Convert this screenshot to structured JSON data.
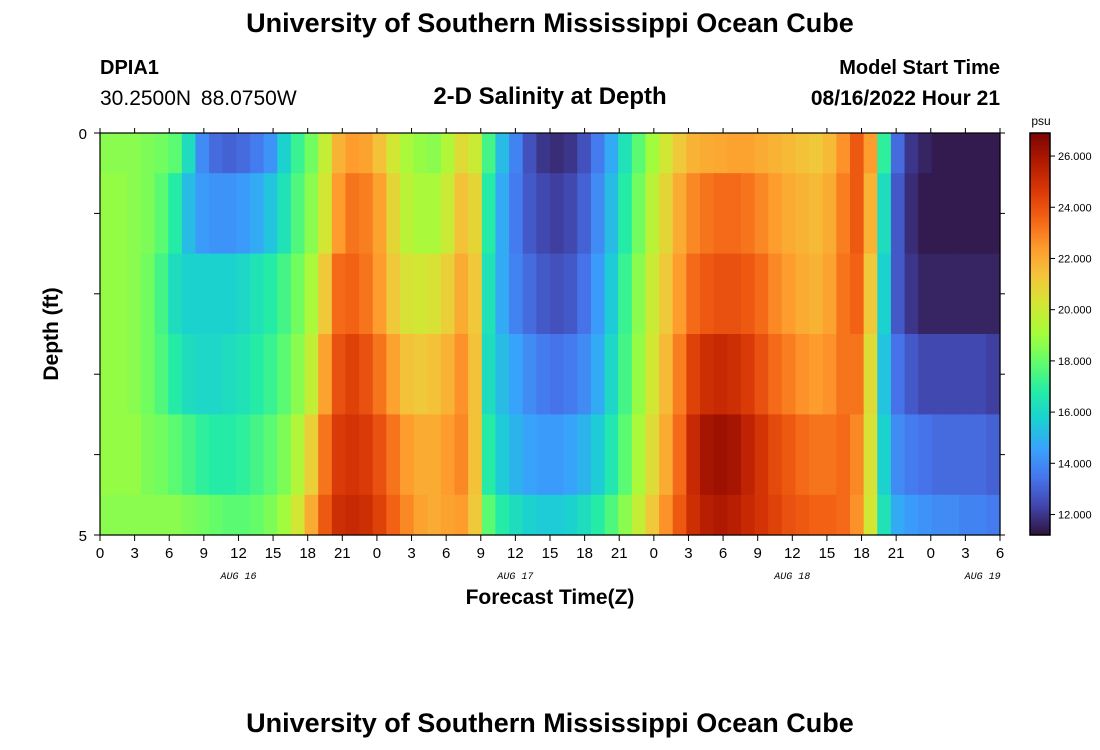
{
  "header": {
    "title": "University of Southern Mississippi Ocean Cube",
    "station": "DPIA1",
    "coords": "30.2500N  88.0750W",
    "subtitle": "2-D Salinity at Depth",
    "model_start_label": "Model Start Time",
    "model_start_value": "08/16/2022 Hour 21",
    "footer_title": "University of Southern Mississippi Ocean Cube"
  },
  "chart_data": {
    "type": "heatmap",
    "title": "2-D Salinity at Depth",
    "xlabel": "Forecast Time(Z)",
    "ylabel": "Depth (ft)",
    "x_tick_labels": [
      "0",
      "3",
      "6",
      "9",
      "12",
      "15",
      "18",
      "21",
      "0",
      "3",
      "6",
      "9",
      "12",
      "15",
      "18",
      "21",
      "0",
      "3",
      "6",
      "9",
      "12",
      "15",
      "18",
      "21",
      "0",
      "3",
      "6"
    ],
    "date_labels": [
      "AUG 16",
      "AUG 17",
      "AUG 18",
      "AUG 19"
    ],
    "y_tick_labels": [
      "0",
      "5"
    ],
    "ylim": [
      0,
      5
    ],
    "colorbar": {
      "unit": "psu",
      "min": 11.2,
      "max": 26.9,
      "tick_values": [
        12,
        14,
        16,
        18,
        20,
        22,
        24,
        26
      ],
      "tick_labels": [
        "12.000",
        "14.000",
        "16.000",
        "18.000",
        "20.000",
        "22.000",
        "24.000",
        "26.000"
      ],
      "colors": [
        "#30123b",
        "#4145ab",
        "#4675ed",
        "#39a2fc",
        "#1bcfd4",
        "#24eca6",
        "#61fc6c",
        "#a4fc3b",
        "#d1e834",
        "#f3c63a",
        "#fe9b2d",
        "#f36315",
        "#d93806",
        "#b11901",
        "#7a0402"
      ]
    },
    "depth_rows": [
      {
        "depth": 0.0,
        "values": [
          18.6,
          18.6,
          18.6,
          18.4,
          18.2,
          17.8,
          16.2,
          14.0,
          13.2,
          13.0,
          13.2,
          13.6,
          14.2,
          15.8,
          17.2,
          18.2,
          19.8,
          21.8,
          22.4,
          22.2,
          21.4,
          20.2,
          19.2,
          18.8,
          18.6,
          19.4,
          20.6,
          20.0,
          17.4,
          15.2,
          13.8,
          12.6,
          12.0,
          11.8,
          12.0,
          12.6,
          13.6,
          14.8,
          16.4,
          17.8,
          19.0,
          20.2,
          21.2,
          21.8,
          22.0,
          22.1,
          22.2,
          22.2,
          22.0,
          21.8,
          21.6,
          21.4,
          21.2,
          21.6,
          22.6,
          23.8,
          22.4,
          17.0,
          13.2,
          12.0,
          11.6,
          11.4,
          11.4,
          11.4,
          11.4,
          11.4
        ]
      },
      {
        "depth": 1.0,
        "values": [
          18.8,
          18.8,
          18.6,
          18.4,
          17.8,
          16.8,
          15.2,
          14.4,
          14.2,
          14.2,
          14.4,
          14.8,
          15.4,
          16.4,
          17.6,
          18.6,
          20.2,
          22.4,
          23.2,
          23.0,
          22.2,
          20.8,
          19.6,
          19.2,
          19.2,
          20.0,
          21.4,
          20.8,
          16.8,
          14.8,
          13.6,
          12.8,
          12.4,
          12.2,
          12.4,
          13.0,
          14.0,
          15.2,
          16.8,
          18.2,
          19.6,
          20.8,
          22.0,
          22.8,
          23.2,
          23.4,
          23.4,
          23.2,
          22.8,
          22.4,
          22.0,
          21.8,
          21.6,
          22.0,
          23.0,
          23.8,
          21.8,
          16.2,
          12.8,
          11.8,
          11.4,
          11.4,
          11.4,
          11.4,
          11.4,
          11.4
        ]
      },
      {
        "depth": 2.0,
        "values": [
          18.8,
          18.8,
          18.6,
          18.2,
          17.4,
          16.2,
          15.8,
          15.8,
          15.8,
          15.8,
          16.0,
          16.4,
          16.8,
          17.4,
          18.2,
          19.2,
          21.2,
          23.4,
          23.6,
          23.2,
          22.4,
          21.2,
          20.4,
          20.2,
          20.4,
          21.0,
          22.0,
          21.2,
          16.4,
          14.8,
          13.8,
          13.2,
          12.8,
          12.6,
          12.8,
          13.4,
          14.4,
          15.6,
          17.2,
          18.6,
          20.0,
          21.2,
          22.4,
          23.4,
          23.8,
          24.0,
          24.0,
          23.8,
          23.4,
          22.8,
          22.4,
          22.0,
          21.8,
          22.2,
          23.2,
          23.6,
          21.2,
          15.8,
          12.8,
          12.0,
          11.6,
          11.6,
          11.6,
          11.6,
          11.6,
          11.6
        ]
      },
      {
        "depth": 3.0,
        "values": [
          18.8,
          18.8,
          18.6,
          18.2,
          17.6,
          16.8,
          16.2,
          16.0,
          16.0,
          16.2,
          16.4,
          16.8,
          17.2,
          17.8,
          18.6,
          19.8,
          22.2,
          24.0,
          24.4,
          24.0,
          23.2,
          22.2,
          21.4,
          21.2,
          21.4,
          21.8,
          22.6,
          21.4,
          16.2,
          15.2,
          14.6,
          14.0,
          13.6,
          13.4,
          13.6,
          14.0,
          14.8,
          16.0,
          17.4,
          18.8,
          20.2,
          21.6,
          23.0,
          24.4,
          25.0,
          25.2,
          25.0,
          24.6,
          24.0,
          23.4,
          23.0,
          22.6,
          22.4,
          22.6,
          23.2,
          23.2,
          20.6,
          15.4,
          13.4,
          12.8,
          12.4,
          12.4,
          12.4,
          12.4,
          12.4,
          12.2
        ]
      },
      {
        "depth": 4.0,
        "values": [
          18.8,
          18.8,
          18.8,
          18.4,
          18.2,
          17.8,
          17.4,
          17.0,
          16.8,
          16.8,
          17.0,
          17.4,
          17.8,
          18.4,
          19.4,
          21.0,
          23.2,
          24.6,
          24.8,
          24.6,
          24.0,
          23.2,
          22.4,
          22.0,
          22.0,
          22.4,
          22.8,
          21.4,
          16.8,
          15.6,
          15.0,
          14.6,
          14.4,
          14.4,
          14.6,
          15.0,
          15.6,
          16.6,
          17.8,
          19.2,
          20.6,
          22.0,
          23.4,
          25.2,
          26.0,
          26.2,
          26.0,
          25.4,
          24.8,
          24.2,
          23.8,
          23.4,
          23.2,
          23.2,
          23.4,
          22.8,
          20.4,
          15.8,
          14.0,
          13.6,
          13.4,
          13.2,
          13.2,
          13.2,
          13.2,
          13.0
        ]
      },
      {
        "depth": 5.0,
        "values": [
          18.6,
          18.6,
          18.6,
          18.6,
          18.6,
          18.6,
          18.4,
          18.2,
          18.0,
          17.8,
          17.8,
          18.0,
          18.4,
          19.0,
          20.2,
          22.0,
          23.8,
          25.0,
          25.2,
          25.0,
          24.4,
          23.6,
          22.8,
          22.2,
          22.0,
          22.2,
          22.4,
          21.2,
          17.8,
          16.8,
          16.2,
          15.8,
          15.6,
          15.6,
          15.8,
          16.2,
          16.8,
          17.6,
          18.6,
          19.8,
          21.2,
          22.6,
          23.8,
          25.0,
          25.6,
          25.8,
          25.6,
          25.2,
          24.8,
          24.4,
          24.0,
          23.8,
          23.6,
          23.6,
          23.4,
          22.6,
          20.2,
          16.4,
          14.8,
          14.4,
          14.2,
          14.0,
          14.0,
          13.8,
          13.8,
          13.6
        ]
      }
    ]
  }
}
